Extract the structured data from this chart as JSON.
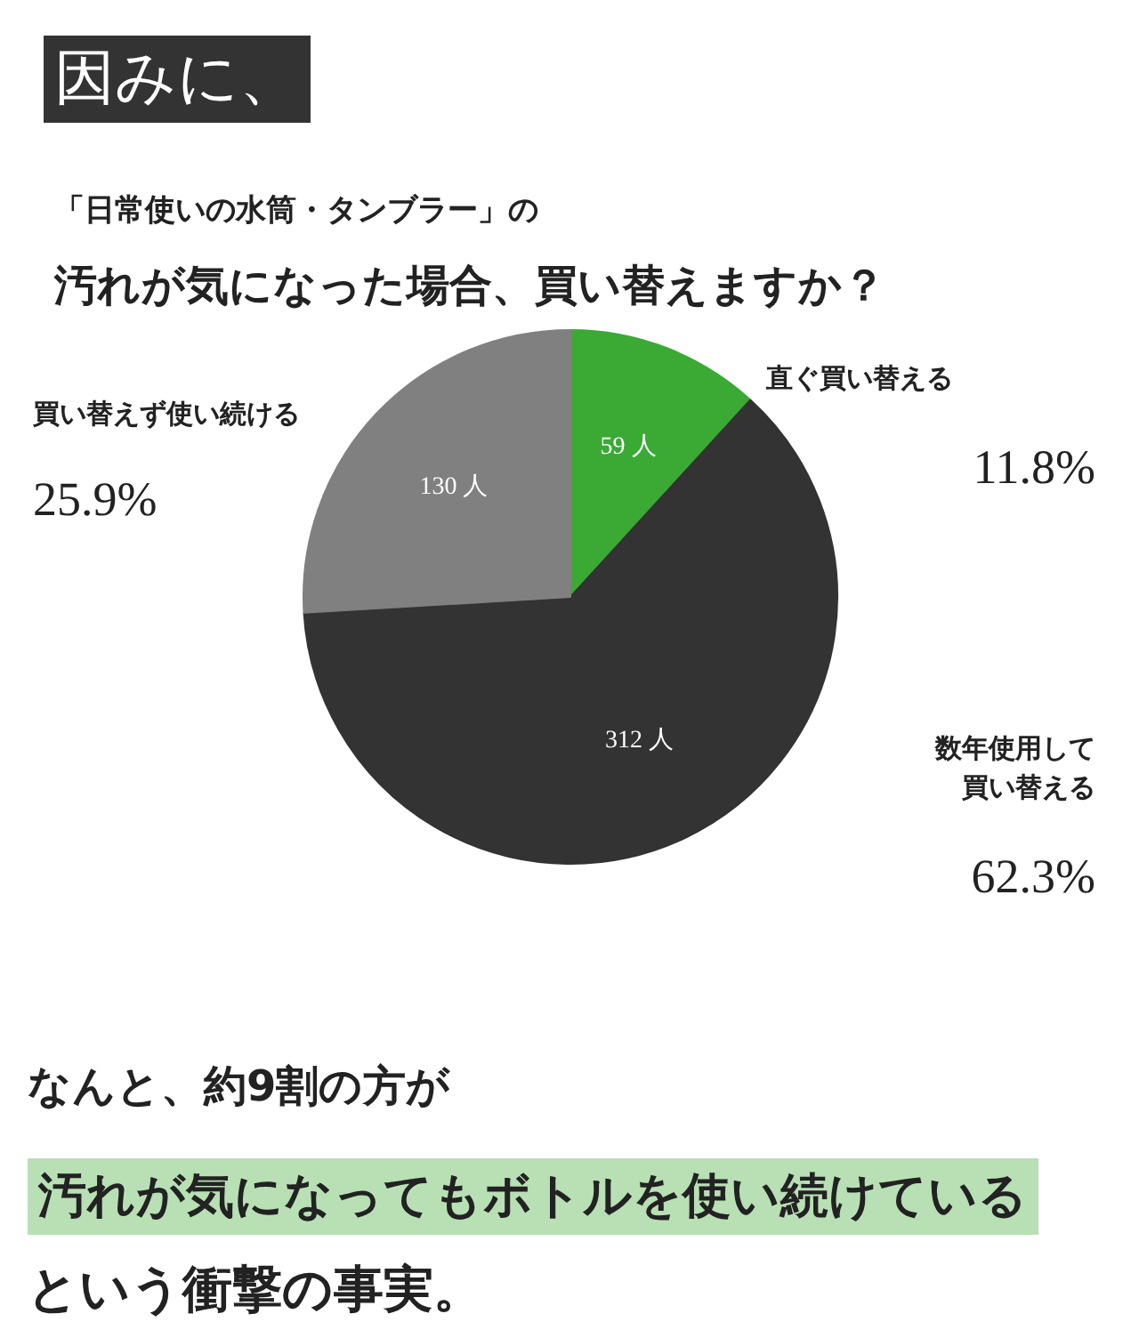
{
  "chart_data": {
    "type": "pie",
    "title": "「日常使いの水筒・タンブラー」の",
    "subtitle": "汚れが気になった場合、買い替えますか？",
    "categories": [
      "直ぐ買い替える",
      "数年使用して買い替える",
      "買い替えず使い続ける"
    ],
    "values": [
      59,
      312,
      130
    ],
    "colors": [
      "#3aaa35",
      "#333333",
      "#808080"
    ],
    "value_labels": [
      "59 人",
      "312 人",
      "130 人"
    ],
    "annotations": [
      "因みに、",
      "11.8%",
      "62.3%",
      "25.9%",
      "なんと、約9割の方が",
      "汚れが気になってもボトルを使い続けている",
      "という衝撃の事実。"
    ]
  }
}
